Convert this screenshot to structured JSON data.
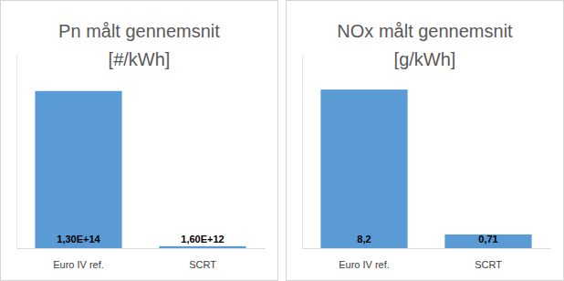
{
  "chart_data": [
    {
      "type": "bar",
      "title": "Pn målt gennemsnit",
      "subtitle": "[#/kWh]",
      "categories": [
        "Euro IV ref.",
        "SCRT"
      ],
      "values": [
        130000000000000,
        1600000000000
      ],
      "value_labels": [
        "1,30E+14",
        "1,60E+12"
      ],
      "color": "#5b9bd5",
      "ylim": [
        0,
        160000000000000
      ],
      "data_labels": true,
      "tick_labels": "x"
    },
    {
      "type": "bar",
      "title": "NOx målt gennemsnit",
      "subtitle": "[g/kWh]",
      "categories": [
        "Euro IV ref.",
        "SCRT"
      ],
      "values": [
        8.2,
        0.71
      ],
      "value_labels": [
        "8,2",
        "0,71"
      ],
      "color": "#5b9bd5",
      "ylim": [
        0,
        10
      ],
      "data_labels": true,
      "tick_labels": "x"
    }
  ]
}
